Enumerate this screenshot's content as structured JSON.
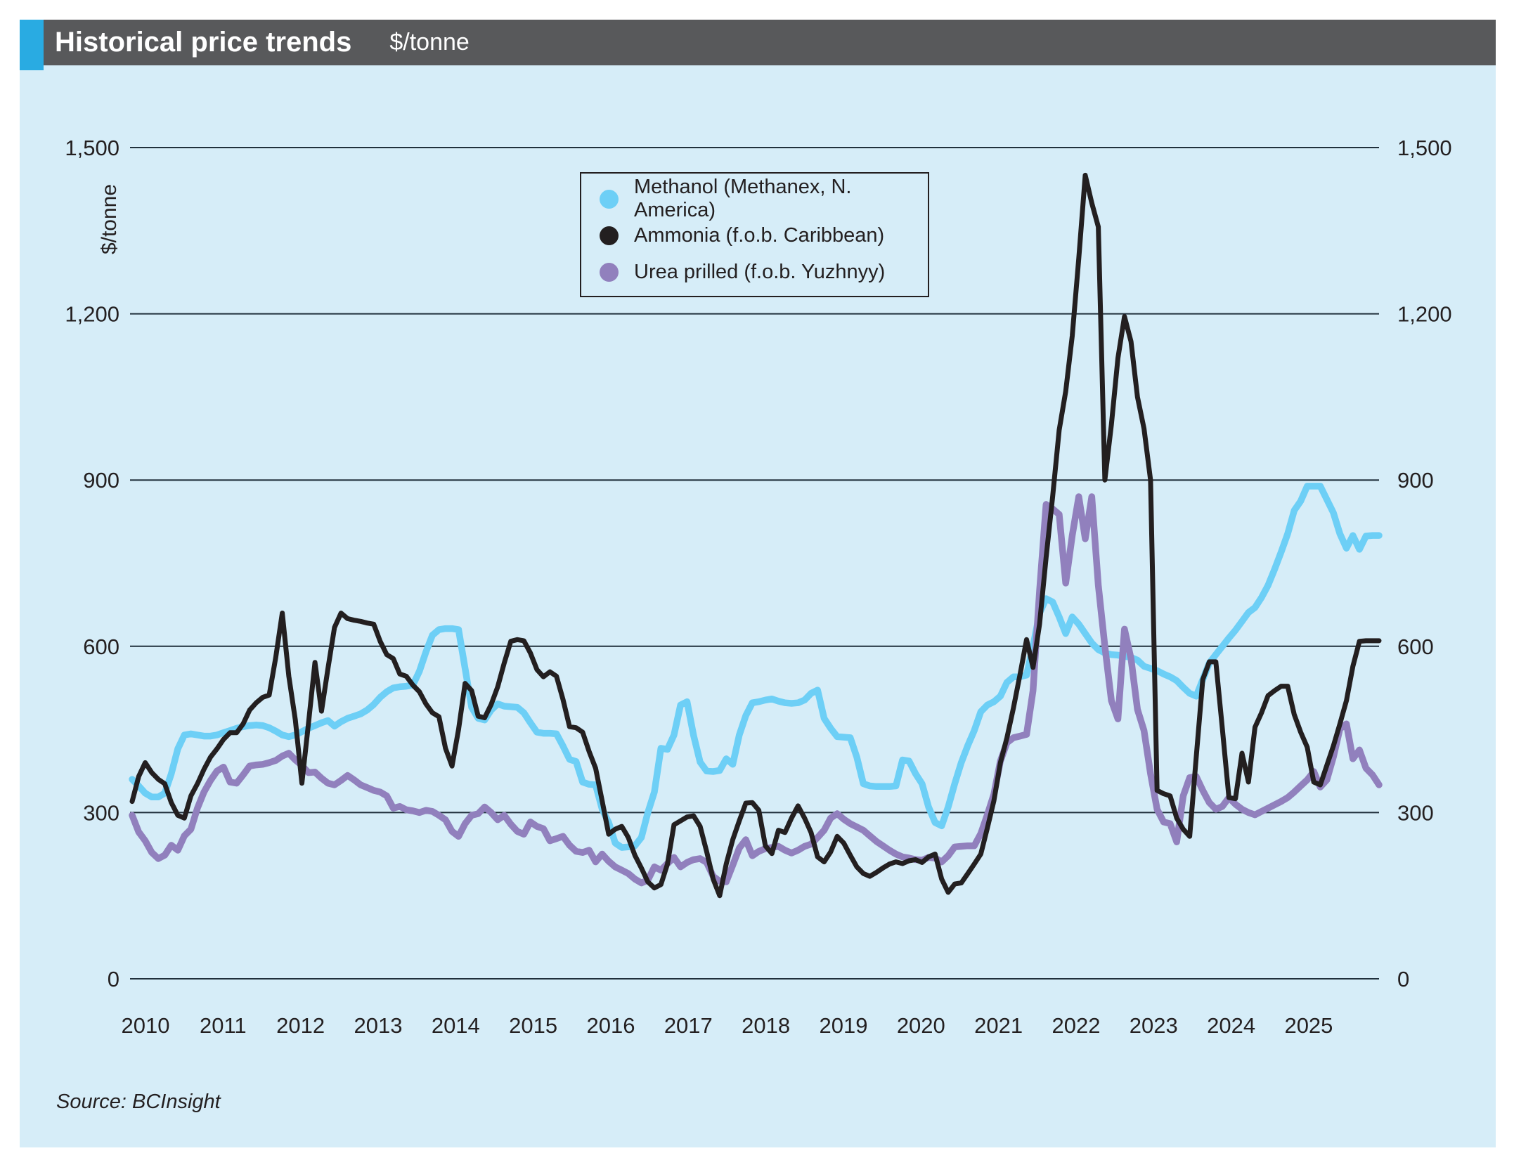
{
  "header": {
    "title": "Historical price trends",
    "unit_label": "$/tonne",
    "bar_color": "#58595b",
    "accent_color": "#29abe2",
    "text_color": "#ffffff"
  },
  "source": "Source: BCInsight",
  "chart_data": {
    "type": "line",
    "title": "Historical price trends",
    "ylabel": "$/tonne",
    "background": "#d6edf8",
    "gridline_color": "#20303c",
    "text_color": "#231f20",
    "grid": true,
    "legend_position": "top-center-inside",
    "frequency": "monthly",
    "x_start": "2010-01",
    "x_end": "2025-12",
    "ylim": [
      0,
      1500
    ],
    "y_ticks": [
      {
        "value": 0,
        "label": "0"
      },
      {
        "value": 300,
        "label": "300"
      },
      {
        "value": 600,
        "label": "600"
      },
      {
        "value": 900,
        "label": "900"
      },
      {
        "value": 1200,
        "label": "1,200"
      },
      {
        "value": 1500,
        "label": "1,500"
      }
    ],
    "x_tick_years": [
      "2010",
      "2011",
      "2012",
      "2013",
      "2014",
      "2015",
      "2016",
      "2017",
      "2018",
      "2019",
      "2020",
      "2021",
      "2022",
      "2023",
      "2024",
      "2025"
    ],
    "draw_order": [
      0,
      2,
      1
    ],
    "series": [
      {
        "name": "Methanol (Methanex, N. America)",
        "color": "#6dcff6",
        "line_width": 9.5,
        "values": [
          360,
          348,
          335,
          328,
          328,
          335,
          370,
          415,
          440,
          442,
          440,
          438,
          438,
          440,
          444,
          448,
          452,
          455,
          457,
          458,
          457,
          453,
          447,
          440,
          437,
          440,
          446,
          452,
          457,
          462,
          466,
          456,
          464,
          470,
          474,
          478,
          485,
          495,
          508,
          518,
          525,
          527,
          528,
          530,
          555,
          590,
          620,
          630,
          632,
          632,
          630,
          560,
          490,
          470,
          467,
          485,
          496,
          492,
          491,
          490,
          480,
          462,
          445,
          443,
          443,
          442,
          420,
          396,
          392,
          355,
          351,
          350,
          306,
          282,
          245,
          237,
          238,
          240,
          255,
          300,
          337,
          416,
          414,
          440,
          494,
          500,
          439,
          391,
          375,
          374,
          376,
          397,
          387,
          440,
          475,
          498,
          500,
          503,
          505,
          501,
          498,
          497,
          498,
          503,
          515,
          521,
          470,
          452,
          437,
          436,
          435,
          400,
          352,
          348,
          347,
          347,
          347,
          348,
          395,
          393,
          370,
          352,
          310,
          282,
          276,
          310,
          352,
          390,
          421,
          448,
          482,
          494,
          500,
          510,
          535,
          545,
          545,
          548,
          600,
          660,
          686,
          680,
          653,
          623,
          653,
          640,
          623,
          606,
          594,
          588,
          585,
          584,
          582,
          580,
          575,
          564,
          560,
          556,
          550,
          545,
          538,
          526,
          515,
          510,
          540,
          570,
          585,
          600,
          615,
          629,
          645,
          661,
          670,
          688,
          710,
          739,
          770,
          803,
          845,
          862,
          889,
          889,
          889,
          865,
          841,
          803,
          777,
          800,
          775,
          799,
          800,
          800
        ]
      },
      {
        "name": "Ammonia (f.o.b. Caribbean)",
        "color": "#231f20",
        "line_width": 7,
        "values": [
          320,
          365,
          390,
          372,
          360,
          352,
          318,
          295,
          290,
          330,
          352,
          378,
          400,
          415,
          432,
          444,
          444,
          460,
          485,
          498,
          508,
          512,
          580,
          660,
          546,
          467,
          353,
          460,
          571,
          483,
          560,
          634,
          660,
          650,
          647,
          645,
          642,
          640,
          609,
          585,
          578,
          550,
          546,
          530,
          518,
          496,
          480,
          473,
          416,
          384,
          450,
          533,
          520,
          474,
          471,
          495,
          527,
          570,
          609,
          612,
          610,
          588,
          558,
          545,
          554,
          546,
          504,
          455,
          453,
          445,
          410,
          380,
          321,
          261,
          270,
          275,
          255,
          223,
          200,
          175,
          164,
          170,
          207,
          278,
          285,
          292,
          294,
          275,
          230,
          180,
          150,
          207,
          251,
          285,
          317,
          318,
          304,
          240,
          226,
          268,
          264,
          290,
          312,
          290,
          264,
          220,
          211,
          229,
          257,
          245,
          223,
          202,
          190,
          185,
          192,
          200,
          207,
          211,
          208,
          213,
          215,
          210,
          220,
          225,
          180,
          156,
          171,
          173,
          190,
          207,
          225,
          272,
          321,
          390,
          435,
          489,
          549,
          612,
          562,
          640,
          760,
          870,
          990,
          1060,
          1160,
          1300,
          1450,
          1400,
          1357,
          900,
          1000,
          1120,
          1195,
          1150,
          1050,
          993,
          900,
          340,
          334,
          330,
          290,
          270,
          257,
          400,
          540,
          572,
          572,
          451,
          327,
          325,
          407,
          355,
          454,
          480,
          511,
          520,
          528,
          528,
          477,
          445,
          418,
          355,
          350,
          385,
          420,
          460,
          502,
          564,
          609,
          610,
          610,
          610
        ]
      },
      {
        "name": "Urea prilled (f.o.b. Yuzhnyy)",
        "color": "#9180bd",
        "line_width": 9.5,
        "values": [
          295,
          265,
          249,
          228,
          217,
          223,
          241,
          232,
          258,
          270,
          308,
          337,
          358,
          375,
          382,
          355,
          353,
          368,
          384,
          386,
          387,
          390,
          394,
          402,
          407,
          395,
          385,
          372,
          373,
          362,
          353,
          350,
          358,
          367,
          359,
          350,
          345,
          340,
          337,
          330,
          308,
          311,
          305,
          303,
          300,
          304,
          302,
          295,
          287,
          266,
          257,
          280,
          295,
          298,
          310,
          300,
          287,
          295,
          279,
          266,
          261,
          283,
          275,
          271,
          249,
          253,
          257,
          241,
          230,
          228,
          232,
          211,
          225,
          212,
          202,
          196,
          190,
          180,
          173,
          178,
          202,
          196,
          208,
          219,
          202,
          210,
          215,
          217,
          210,
          185,
          176,
          175,
          205,
          236,
          251,
          222,
          230,
          235,
          237,
          239,
          232,
          227,
          232,
          239,
          243,
          255,
          268,
          290,
          298,
          288,
          280,
          274,
          268,
          258,
          248,
          240,
          232,
          225,
          220,
          218,
          215,
          214,
          219,
          218,
          211,
          222,
          238,
          239,
          240,
          240,
          262,
          296,
          333,
          393,
          426,
          435,
          438,
          441,
          520,
          700,
          856,
          848,
          838,
          714,
          800,
          870,
          794,
          870,
          710,
          600,
          502,
          469,
          631,
          578,
          486,
          448,
          370,
          306,
          283,
          280,
          247,
          330,
          363,
          365,
          340,
          318,
          306,
          311,
          327,
          315,
          306,
          300,
          296,
          302,
          308,
          314,
          320,
          327,
          337,
          348,
          359,
          374,
          346,
          359,
          400,
          451,
          460,
          397,
          413,
          380,
          368,
          350
        ]
      }
    ]
  }
}
